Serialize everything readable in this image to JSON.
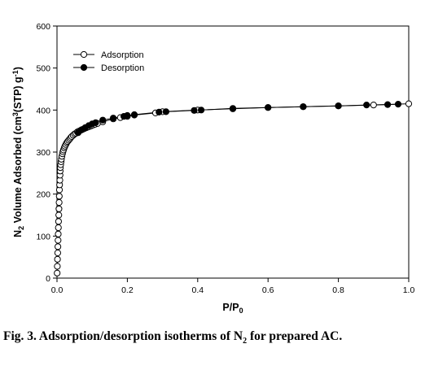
{
  "chart_data": {
    "type": "scatter",
    "xlabel": "P/P0",
    "ylabel": "N2 Volume Adsorbed (cm3(STP) g-1)",
    "xlim": [
      0,
      1.0
    ],
    "ylim": [
      0,
      600
    ],
    "xticks": [
      "0.0",
      "0.2",
      "0.4",
      "0.6",
      "0.8",
      "1.0"
    ],
    "yticks": [
      "0",
      "100",
      "200",
      "300",
      "400",
      "500",
      "600"
    ],
    "grid": false,
    "legend_position": "top-left",
    "series": [
      {
        "name": "Adsorption",
        "marker": "open-circle",
        "line": true,
        "x": [
          0.0005,
          0.001,
          0.0015,
          0.002,
          0.0025,
          0.003,
          0.0035,
          0.004,
          0.0045,
          0.005,
          0.0055,
          0.006,
          0.0065,
          0.007,
          0.0075,
          0.008,
          0.0085,
          0.009,
          0.0095,
          0.0105,
          0.0115,
          0.0125,
          0.014,
          0.0155,
          0.017,
          0.0185,
          0.0205,
          0.0225,
          0.025,
          0.0275,
          0.03,
          0.033,
          0.036,
          0.039,
          0.042,
          0.046,
          0.05,
          0.054,
          0.058,
          0.063,
          0.068,
          0.073,
          0.078,
          0.084,
          0.09,
          0.096,
          0.102,
          0.108,
          0.115,
          0.13,
          0.16,
          0.18,
          0.2,
          0.22,
          0.28,
          0.3,
          0.4,
          0.5,
          0.6,
          0.7,
          0.8,
          0.9,
          1.0
        ],
        "y": [
          12,
          28,
          45,
          60,
          75,
          90,
          105,
          120,
          135,
          150,
          165,
          180,
          195,
          210,
          222,
          233,
          245,
          255,
          263,
          270,
          277,
          283,
          290,
          296,
          301,
          305,
          310,
          314,
          318,
          322,
          325,
          328,
          331,
          334,
          337,
          340,
          343,
          345,
          348,
          350,
          352,
          354,
          356,
          358,
          360,
          362,
          364,
          366,
          368,
          372,
          379,
          382,
          385,
          388,
          393,
          396,
          400,
          403,
          406,
          408,
          410,
          412,
          415
        ]
      },
      {
        "name": "Desorption",
        "marker": "filled-circle",
        "line": true,
        "x": [
          0.97,
          0.94,
          0.88,
          0.8,
          0.7,
          0.6,
          0.5,
          0.41,
          0.39,
          0.31,
          0.29,
          0.22,
          0.2,
          0.19,
          0.16,
          0.13,
          0.11,
          0.1,
          0.09,
          0.08,
          0.07,
          0.06
        ],
        "y": [
          414,
          413,
          412,
          410,
          408,
          406,
          404,
          400,
          399,
          396,
          395,
          389,
          387,
          385,
          381,
          376,
          370,
          367,
          363,
          358,
          353,
          346
        ]
      }
    ]
  },
  "caption": {
    "prefix": "Fig. 3. Adsorption/desorption isotherms of N",
    "sub": "2",
    "suffix": " for prepared AC."
  }
}
